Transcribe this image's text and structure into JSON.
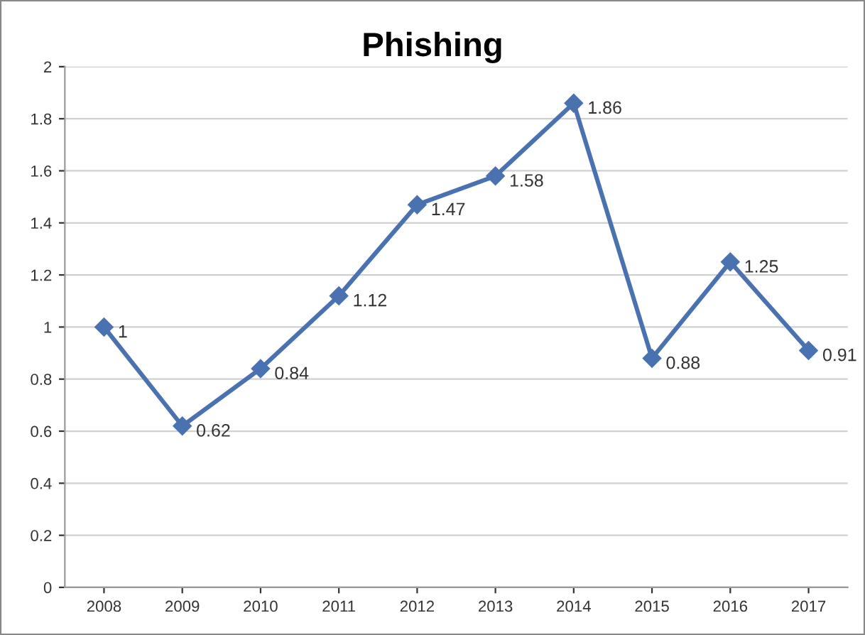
{
  "chart_data": {
    "type": "line",
    "title": "Phishing",
    "categories": [
      "2008",
      "2009",
      "2010",
      "2011",
      "2012",
      "2013",
      "2014",
      "2015",
      "2016",
      "2017"
    ],
    "series": [
      {
        "color": "#4a72b0",
        "values": [
          1,
          0.62,
          0.84,
          1.12,
          1.47,
          1.58,
          1.86,
          0.88,
          1.25,
          0.91
        ]
      }
    ],
    "ylim": [
      0,
      2
    ],
    "yticks": [
      0,
      0.2,
      0.4,
      0.6,
      0.8,
      1,
      1.2,
      1.4,
      1.6,
      1.8,
      2
    ],
    "grid": "y",
    "marker": "diamond",
    "line_style": "solid",
    "data_labels": true
  }
}
